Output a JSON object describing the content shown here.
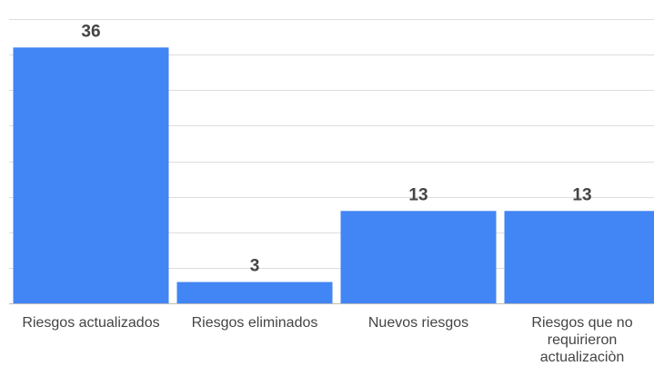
{
  "chart_data": {
    "type": "bar",
    "categories": [
      "Riesgos actualizados",
      "Riesgos eliminados",
      "Nuevos riesgos",
      "Riesgos que no requirieron actualizaciòn"
    ],
    "values": [
      36,
      3,
      13,
      13
    ],
    "color": "#4285f4",
    "ylim": [
      0,
      40
    ],
    "yticks": [
      0,
      5,
      10,
      15,
      20,
      25,
      30,
      35,
      40
    ],
    "grid": true
  }
}
